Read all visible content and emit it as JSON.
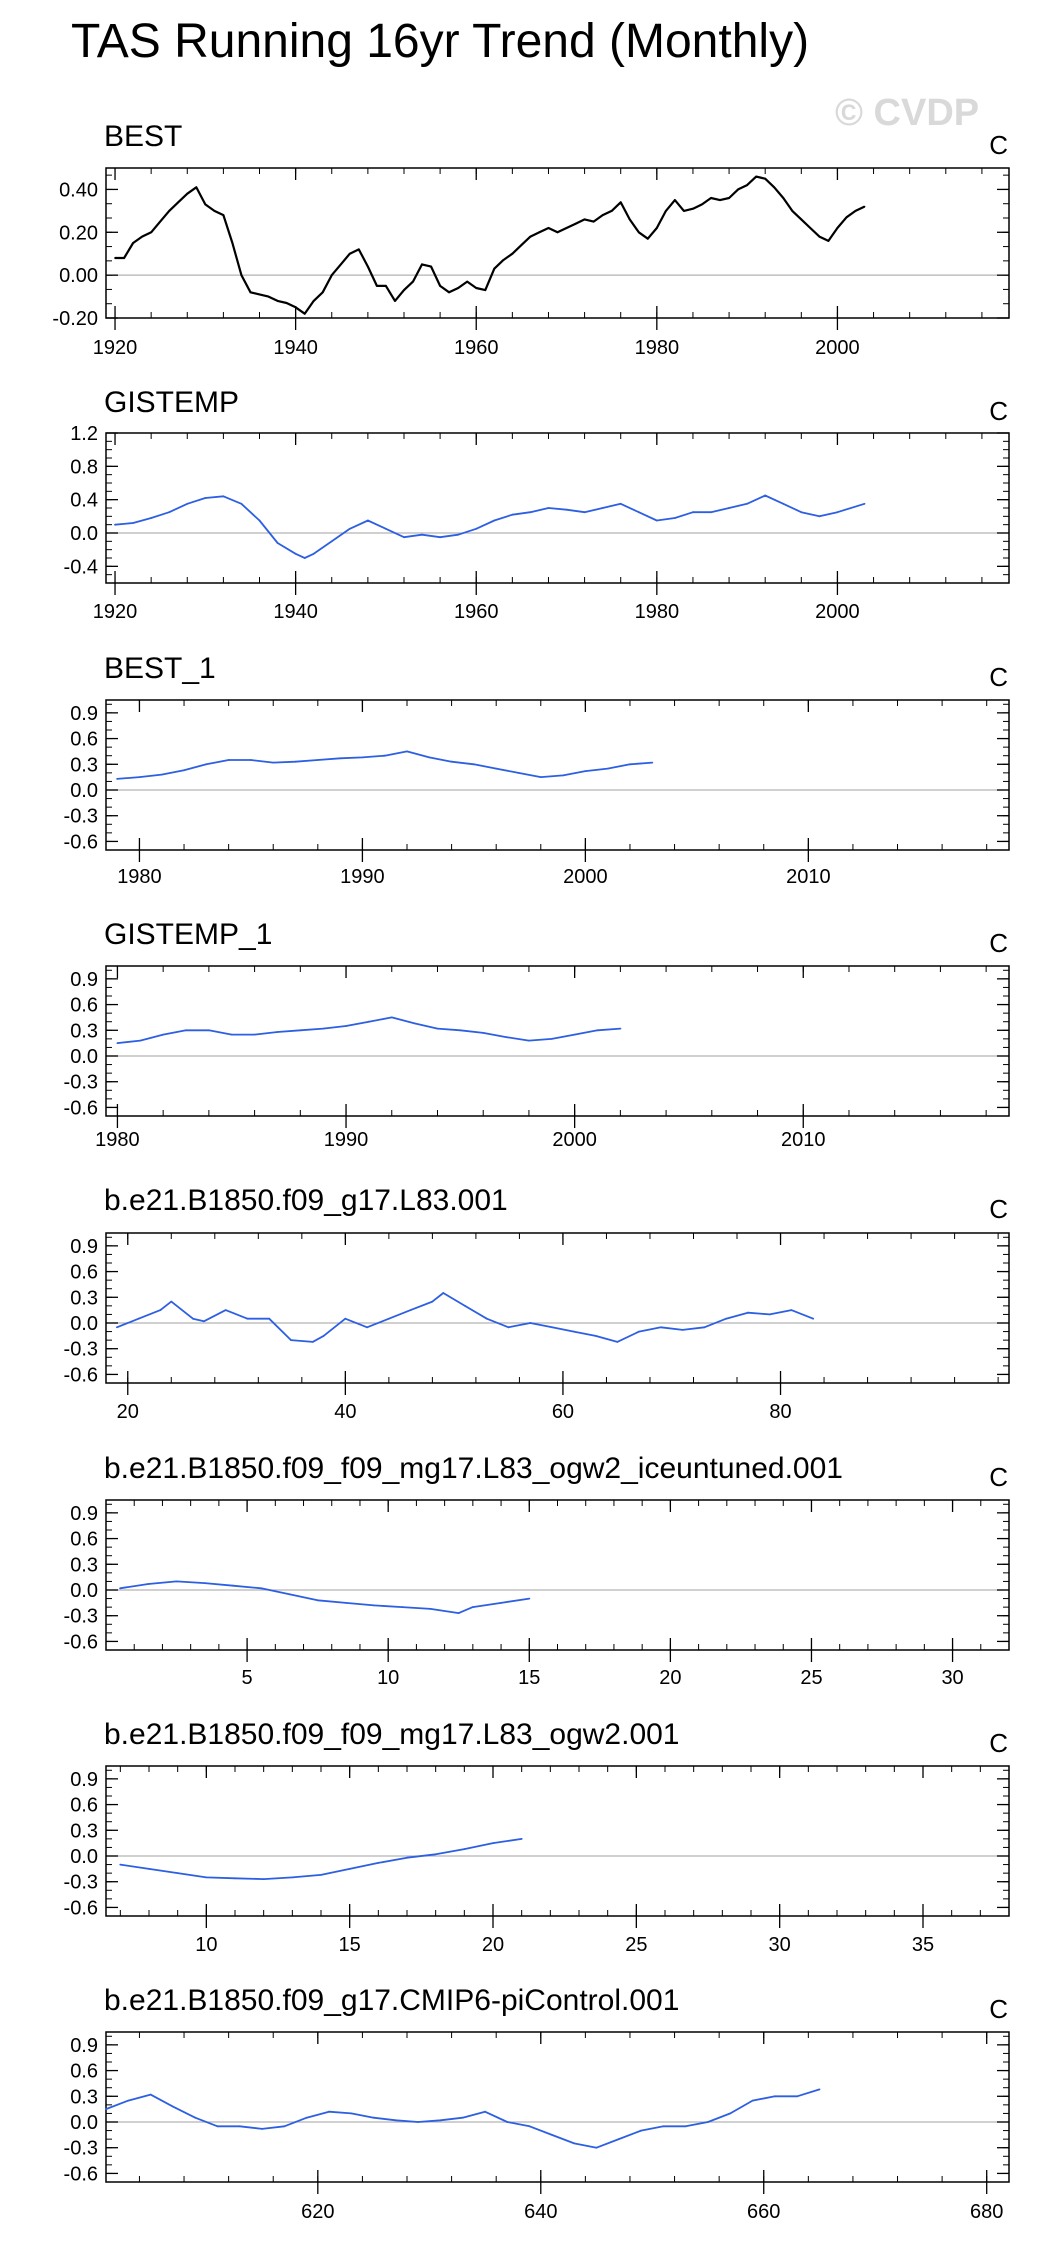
{
  "title": "TAS Running 16yr Trend (Monthly)",
  "watermark": "© CVDP",
  "colors": {
    "observed": "#000000",
    "model": "#2d5fe3",
    "axis": "#000000",
    "zero": "#b3b3b3"
  },
  "chart_data": [
    {
      "type": "line",
      "title": "BEST",
      "units": "C",
      "color": "observed",
      "xlim": [
        1919,
        2019
      ],
      "ylim": [
        -0.2,
        0.5
      ],
      "xticks": [
        1920,
        1940,
        1960,
        1980,
        2000
      ],
      "yticks": [
        -0.2,
        0.0,
        0.2,
        0.4
      ],
      "tick_labels_y": [
        "-0.20",
        "0.00",
        "0.20",
        "0.40"
      ],
      "x": [
        1920,
        1921,
        1922,
        1923,
        1924,
        1925,
        1926,
        1927,
        1928,
        1929,
        1930,
        1931,
        1932,
        1933,
        1934,
        1935,
        1936,
        1937,
        1938,
        1939,
        1940,
        1941,
        1942,
        1943,
        1944,
        1945,
        1946,
        1947,
        1948,
        1949,
        1950,
        1951,
        1952,
        1953,
        1954,
        1955,
        1956,
        1957,
        1958,
        1959,
        1960,
        1961,
        1962,
        1963,
        1964,
        1965,
        1966,
        1967,
        1968,
        1969,
        1970,
        1971,
        1972,
        1973,
        1974,
        1975,
        1976,
        1977,
        1978,
        1979,
        1980,
        1981,
        1982,
        1983,
        1984,
        1985,
        1986,
        1987,
        1988,
        1989,
        1990,
        1991,
        1992,
        1993,
        1994,
        1995,
        1996,
        1997,
        1998,
        1999,
        2000,
        2001,
        2002,
        2003
      ],
      "y": [
        0.08,
        0.08,
        0.15,
        0.18,
        0.2,
        0.25,
        0.3,
        0.34,
        0.38,
        0.41,
        0.33,
        0.3,
        0.28,
        0.15,
        0.0,
        -0.08,
        -0.09,
        -0.1,
        -0.12,
        -0.13,
        -0.15,
        -0.18,
        -0.12,
        -0.08,
        0.0,
        0.05,
        0.1,
        0.12,
        0.04,
        -0.05,
        -0.05,
        -0.12,
        -0.07,
        -0.03,
        0.05,
        0.04,
        -0.05,
        -0.08,
        -0.06,
        -0.03,
        -0.06,
        -0.07,
        0.03,
        0.07,
        0.1,
        0.14,
        0.18,
        0.2,
        0.22,
        0.2,
        0.22,
        0.24,
        0.26,
        0.25,
        0.28,
        0.3,
        0.34,
        0.26,
        0.2,
        0.17,
        0.22,
        0.3,
        0.35,
        0.3,
        0.31,
        0.33,
        0.36,
        0.35,
        0.36,
        0.4,
        0.42,
        0.46,
        0.45,
        0.41,
        0.36,
        0.3,
        0.26,
        0.22,
        0.18,
        0.16,
        0.22,
        0.27,
        0.3,
        0.32
      ]
    },
    {
      "type": "line",
      "title": "GISTEMP",
      "units": "C",
      "color": "model",
      "xlim": [
        1919,
        2019
      ],
      "ylim": [
        -0.6,
        1.2
      ],
      "xticks": [
        1920,
        1940,
        1960,
        1980,
        2000
      ],
      "yticks": [
        -0.4,
        0.0,
        0.4,
        0.8,
        1.2
      ],
      "tick_labels_y": [
        "-0.4",
        "0.0",
        "0.4",
        "0.8",
        "1.2"
      ],
      "x": [
        1920,
        1922,
        1924,
        1926,
        1928,
        1930,
        1932,
        1934,
        1936,
        1938,
        1940,
        1941,
        1942,
        1944,
        1946,
        1948,
        1950,
        1952,
        1954,
        1956,
        1958,
        1960,
        1962,
        1964,
        1966,
        1968,
        1970,
        1972,
        1974,
        1976,
        1978,
        1980,
        1982,
        1984,
        1986,
        1988,
        1990,
        1992,
        1994,
        1996,
        1998,
        2000,
        2003
      ],
      "y": [
        0.1,
        0.12,
        0.18,
        0.25,
        0.35,
        0.42,
        0.44,
        0.35,
        0.15,
        -0.12,
        -0.25,
        -0.3,
        -0.25,
        -0.1,
        0.05,
        0.15,
        0.05,
        -0.05,
        -0.02,
        -0.05,
        -0.02,
        0.05,
        0.15,
        0.22,
        0.25,
        0.3,
        0.28,
        0.25,
        0.3,
        0.35,
        0.25,
        0.15,
        0.18,
        0.25,
        0.25,
        0.3,
        0.35,
        0.45,
        0.35,
        0.25,
        0.2,
        0.25,
        0.35
      ]
    },
    {
      "type": "line",
      "title": "BEST_1",
      "units": "C",
      "color": "model",
      "xlim": [
        1978.5,
        2019
      ],
      "ylim": [
        -0.7,
        1.05
      ],
      "xticks": [
        1980,
        1990,
        2000,
        2010
      ],
      "yticks": [
        -0.6,
        -0.3,
        0.0,
        0.3,
        0.6,
        0.9
      ],
      "tick_labels_y": [
        "-0.6",
        "-0.3",
        "0.0",
        "0.3",
        "0.6",
        "0.9"
      ],
      "x": [
        1979,
        1980,
        1981,
        1982,
        1983,
        1984,
        1985,
        1986,
        1987,
        1988,
        1989,
        1990,
        1991,
        1992,
        1993,
        1994,
        1995,
        1996,
        1997,
        1998,
        1999,
        2000,
        2001,
        2002,
        2003
      ],
      "y": [
        0.13,
        0.15,
        0.18,
        0.23,
        0.3,
        0.35,
        0.35,
        0.32,
        0.33,
        0.35,
        0.37,
        0.38,
        0.4,
        0.45,
        0.38,
        0.33,
        0.3,
        0.25,
        0.2,
        0.15,
        0.17,
        0.22,
        0.25,
        0.3,
        0.32
      ]
    },
    {
      "type": "line",
      "title": "GISTEMP_1",
      "units": "C",
      "color": "model",
      "xlim": [
        1979.5,
        2019
      ],
      "ylim": [
        -0.7,
        1.05
      ],
      "xticks": [
        1980,
        1990,
        2000,
        2010
      ],
      "yticks": [
        -0.6,
        -0.3,
        0.0,
        0.3,
        0.6,
        0.9
      ],
      "tick_labels_y": [
        "-0.6",
        "-0.3",
        "0.0",
        "0.3",
        "0.6",
        "0.9"
      ],
      "x": [
        1980,
        1981,
        1982,
        1983,
        1984,
        1985,
        1986,
        1987,
        1988,
        1989,
        1990,
        1991,
        1992,
        1993,
        1994,
        1995,
        1996,
        1997,
        1998,
        1999,
        2000,
        2001,
        2002
      ],
      "y": [
        0.15,
        0.18,
        0.25,
        0.3,
        0.3,
        0.25,
        0.25,
        0.28,
        0.3,
        0.32,
        0.35,
        0.4,
        0.45,
        0.38,
        0.32,
        0.3,
        0.27,
        0.22,
        0.18,
        0.2,
        0.25,
        0.3,
        0.32
      ]
    },
    {
      "type": "line",
      "title": "b.e21.B1850.f09_g17.L83.001",
      "units": "C",
      "color": "model",
      "xlim": [
        18,
        101
      ],
      "ylim": [
        -0.7,
        1.05
      ],
      "xticks": [
        20,
        40,
        60,
        80
      ],
      "yticks": [
        -0.6,
        -0.3,
        0.0,
        0.3,
        0.6,
        0.9
      ],
      "tick_labels_y": [
        "-0.6",
        "-0.3",
        "0.0",
        "0.3",
        "0.6",
        "0.9"
      ],
      "x": [
        19,
        21,
        23,
        24,
        26,
        27,
        29,
        31,
        33,
        35,
        37,
        38,
        40,
        42,
        44,
        46,
        48,
        49,
        51,
        53,
        55,
        57,
        59,
        61,
        63,
        65,
        67,
        69,
        71,
        73,
        75,
        77,
        79,
        81,
        83
      ],
      "y": [
        -0.05,
        0.05,
        0.15,
        0.25,
        0.05,
        0.02,
        0.15,
        0.05,
        0.05,
        -0.2,
        -0.22,
        -0.15,
        0.05,
        -0.05,
        0.05,
        0.15,
        0.25,
        0.35,
        0.2,
        0.05,
        -0.05,
        0.0,
        -0.05,
        -0.1,
        -0.15,
        -0.22,
        -0.1,
        -0.05,
        -0.08,
        -0.05,
        0.05,
        0.12,
        0.1,
        0.15,
        0.05
      ]
    },
    {
      "type": "line",
      "title": "b.e21.B1850.f09_f09_mg17.L83_ogw2_iceuntuned.001",
      "units": "C",
      "color": "model",
      "xlim": [
        0,
        32
      ],
      "ylim": [
        -0.7,
        1.05
      ],
      "xticks": [
        5,
        10,
        15,
        20,
        25,
        30
      ],
      "yticks": [
        -0.6,
        -0.3,
        0.0,
        0.3,
        0.6,
        0.9
      ],
      "tick_labels_y": [
        "-0.6",
        "-0.3",
        "0.0",
        "0.3",
        "0.6",
        "0.9"
      ],
      "x": [
        0.5,
        1.5,
        2.5,
        3.5,
        4.5,
        5.5,
        6.5,
        7.5,
        8.5,
        9.5,
        10.5,
        11.5,
        12.5,
        13,
        14,
        15
      ],
      "y": [
        0.02,
        0.07,
        0.1,
        0.08,
        0.05,
        0.02,
        -0.05,
        -0.12,
        -0.15,
        -0.18,
        -0.2,
        -0.22,
        -0.27,
        -0.2,
        -0.15,
        -0.1
      ]
    },
    {
      "type": "line",
      "title": "b.e21.B1850.f09_f09_mg17.L83_ogw2.001",
      "units": "C",
      "color": "model",
      "xlim": [
        6.5,
        38
      ],
      "ylim": [
        -0.7,
        1.05
      ],
      "xticks": [
        10,
        15,
        20,
        25,
        30,
        35
      ],
      "yticks": [
        -0.6,
        -0.3,
        0.0,
        0.3,
        0.6,
        0.9
      ],
      "tick_labels_y": [
        "-0.6",
        "-0.3",
        "0.0",
        "0.3",
        "0.6",
        "0.9"
      ],
      "x": [
        7,
        8,
        9,
        10,
        11,
        12,
        13,
        14,
        15,
        16,
        17,
        18,
        19,
        20,
        21
      ],
      "y": [
        -0.1,
        -0.15,
        -0.2,
        -0.25,
        -0.26,
        -0.27,
        -0.25,
        -0.22,
        -0.15,
        -0.08,
        -0.02,
        0.02,
        0.08,
        0.15,
        0.2
      ]
    },
    {
      "type": "line",
      "title": "b.e21.B1850.f09_g17.CMIP6-piControl.001",
      "units": "C",
      "color": "model",
      "xlim": [
        601,
        682
      ],
      "ylim": [
        -0.7,
        1.05
      ],
      "xticks": [
        620,
        640,
        660,
        680
      ],
      "yticks": [
        -0.6,
        -0.3,
        0.0,
        0.3,
        0.6,
        0.9
      ],
      "tick_labels_y": [
        "-0.6",
        "-0.3",
        "0.0",
        "0.3",
        "0.6",
        "0.9"
      ],
      "x": [
        601,
        603,
        605,
        607,
        609,
        611,
        613,
        615,
        617,
        619,
        621,
        623,
        625,
        627,
        629,
        631,
        633,
        635,
        637,
        639,
        641,
        643,
        645,
        647,
        649,
        651,
        653,
        655,
        657,
        659,
        661,
        663,
        665
      ],
      "y": [
        0.15,
        0.25,
        0.32,
        0.18,
        0.05,
        -0.05,
        -0.05,
        -0.08,
        -0.05,
        0.05,
        0.12,
        0.1,
        0.05,
        0.02,
        0.0,
        0.02,
        0.05,
        0.12,
        0.0,
        -0.05,
        -0.15,
        -0.25,
        -0.3,
        -0.2,
        -0.1,
        -0.05,
        -0.05,
        0.0,
        0.1,
        0.25,
        0.3,
        0.3,
        0.38
      ]
    }
  ]
}
